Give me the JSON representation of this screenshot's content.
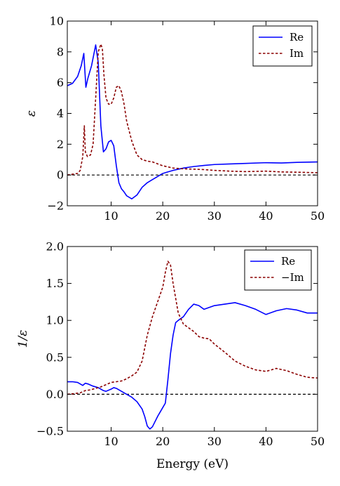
{
  "chart_data": [
    {
      "type": "line",
      "ylabel": "ε",
      "xlabel": "",
      "xlim": [
        1.5,
        50
      ],
      "ylim": [
        -2,
        10
      ],
      "xticks": [
        10,
        20,
        30,
        40,
        50
      ],
      "yticks": [
        -2,
        0,
        2,
        4,
        6,
        8,
        10
      ],
      "ytick_labels": [
        "−2",
        "0",
        "2",
        "4",
        "6",
        "8",
        "10"
      ],
      "grid": false,
      "legend_position": "top-right",
      "reference_line": {
        "y": 0,
        "style": "dashed",
        "color": "#000000"
      },
      "series": [
        {
          "name": "Re",
          "color": "#0000ff",
          "style": "solid",
          "x": [
            1.5,
            2.5,
            3.5,
            4.2,
            4.7,
            5.1,
            5.5,
            6.2,
            7.0,
            7.5,
            8.0,
            8.5,
            9.0,
            9.5,
            10.0,
            10.5,
            11.0,
            11.5,
            12.0,
            12.5,
            13.0,
            14.0,
            15.0,
            16.0,
            17.0,
            18.0,
            19.0,
            20.0,
            21.0,
            22.0,
            24.0,
            26.0,
            28.0,
            30.0,
            33.0,
            36.0,
            40.0,
            43.0,
            46.0,
            50.0
          ],
          "y": [
            5.8,
            5.95,
            6.4,
            7.1,
            7.9,
            5.7,
            6.3,
            7.1,
            8.45,
            7.3,
            3.2,
            1.5,
            1.7,
            2.15,
            2.25,
            1.9,
            0.6,
            -0.5,
            -0.9,
            -1.1,
            -1.35,
            -1.55,
            -1.3,
            -0.8,
            -0.5,
            -0.3,
            -0.1,
            0.1,
            0.2,
            0.3,
            0.45,
            0.55,
            0.62,
            0.68,
            0.72,
            0.75,
            0.8,
            0.78,
            0.82,
            0.85
          ]
        },
        {
          "name": "Im",
          "color": "#8b0000",
          "style": "dashed",
          "x": [
            1.5,
            2.5,
            3.5,
            4.0,
            4.5,
            4.8,
            5.0,
            5.4,
            6.0,
            6.5,
            7.0,
            7.5,
            8.0,
            8.3,
            8.6,
            9.0,
            9.5,
            10.0,
            10.5,
            11.0,
            11.5,
            12.0,
            12.5,
            13.0,
            14.0,
            15.0,
            16.0,
            17.0,
            18.0,
            20.0,
            22.0,
            24.0,
            26.0,
            28.0,
            30.0,
            33.0,
            36.0,
            40.0,
            43.0,
            46.0,
            50.0
          ],
          "y": [
            0.0,
            0.05,
            0.1,
            0.3,
            1.2,
            3.2,
            1.5,
            1.2,
            1.3,
            2.0,
            5.0,
            8.0,
            8.5,
            8.2,
            6.5,
            5.0,
            4.6,
            4.6,
            5.0,
            5.7,
            5.8,
            5.4,
            4.6,
            3.5,
            2.2,
            1.3,
            1.0,
            0.9,
            0.85,
            0.6,
            0.45,
            0.4,
            0.38,
            0.35,
            0.3,
            0.25,
            0.22,
            0.25,
            0.2,
            0.18,
            0.15
          ]
        }
      ]
    },
    {
      "type": "line",
      "ylabel": "1/ε",
      "xlabel": "Energy (eV)",
      "xlim": [
        1.5,
        50
      ],
      "ylim": [
        -0.5,
        2.0
      ],
      "xticks": [
        10,
        20,
        30,
        40,
        50
      ],
      "yticks": [
        -0.5,
        0.0,
        0.5,
        1.0,
        1.5,
        2.0
      ],
      "ytick_labels": [
        "−0.5",
        "0.0",
        "0.5",
        "1.0",
        "1.5",
        "2.0"
      ],
      "grid": false,
      "legend_position": "top-right",
      "reference_line": {
        "y": 0,
        "style": "dashed",
        "color": "#000000"
      },
      "series": [
        {
          "name": "Re",
          "color": "#0000ff",
          "style": "solid",
          "x": [
            1.5,
            2.5,
            3.5,
            4.5,
            5.0,
            5.5,
            6.5,
            7.5,
            8.5,
            9.0,
            10.0,
            10.5,
            11.0,
            12.0,
            13.0,
            14.0,
            15.0,
            16.0,
            16.5,
            17.0,
            17.5,
            18.0,
            19.0,
            20.0,
            20.5,
            21.0,
            21.5,
            22.0,
            22.5,
            23.0,
            24.0,
            25.0,
            26.0,
            27.0,
            28.0,
            30.0,
            32.0,
            34.0,
            36.0,
            38.0,
            40.0,
            42.0,
            44.0,
            46.0,
            48.0,
            50.0
          ],
          "y": [
            0.17,
            0.17,
            0.16,
            0.12,
            0.15,
            0.14,
            0.11,
            0.09,
            0.05,
            0.04,
            0.07,
            0.09,
            0.08,
            0.04,
            0.0,
            -0.04,
            -0.1,
            -0.2,
            -0.3,
            -0.43,
            -0.47,
            -0.44,
            -0.3,
            -0.18,
            -0.12,
            0.2,
            0.55,
            0.8,
            0.97,
            1.0,
            1.05,
            1.15,
            1.22,
            1.2,
            1.15,
            1.2,
            1.22,
            1.24,
            1.2,
            1.15,
            1.08,
            1.13,
            1.16,
            1.14,
            1.1,
            1.1
          ]
        },
        {
          "name": "−Im",
          "color": "#8b0000",
          "style": "dashed",
          "x": [
            1.5,
            3.0,
            4.0,
            5.0,
            6.0,
            7.0,
            8.0,
            9.0,
            10.0,
            11.0,
            12.0,
            13.0,
            14.0,
            15.0,
            16.0,
            17.0,
            18.0,
            19.0,
            20.0,
            20.5,
            21.0,
            21.5,
            22.0,
            23.0,
            24.0,
            25.0,
            26.0,
            27.0,
            28.0,
            29.0,
            30.0,
            32.0,
            34.0,
            36.0,
            38.0,
            40.0,
            42.0,
            44.0,
            46.0,
            48.0,
            50.0
          ],
          "y": [
            0.0,
            0.01,
            0.02,
            0.05,
            0.06,
            0.08,
            0.1,
            0.13,
            0.16,
            0.17,
            0.18,
            0.21,
            0.25,
            0.3,
            0.45,
            0.8,
            1.05,
            1.25,
            1.45,
            1.65,
            1.8,
            1.75,
            1.5,
            1.1,
            0.95,
            0.9,
            0.85,
            0.78,
            0.76,
            0.75,
            0.68,
            0.57,
            0.45,
            0.38,
            0.33,
            0.31,
            0.35,
            0.32,
            0.27,
            0.23,
            0.22
          ]
        }
      ]
    }
  ]
}
